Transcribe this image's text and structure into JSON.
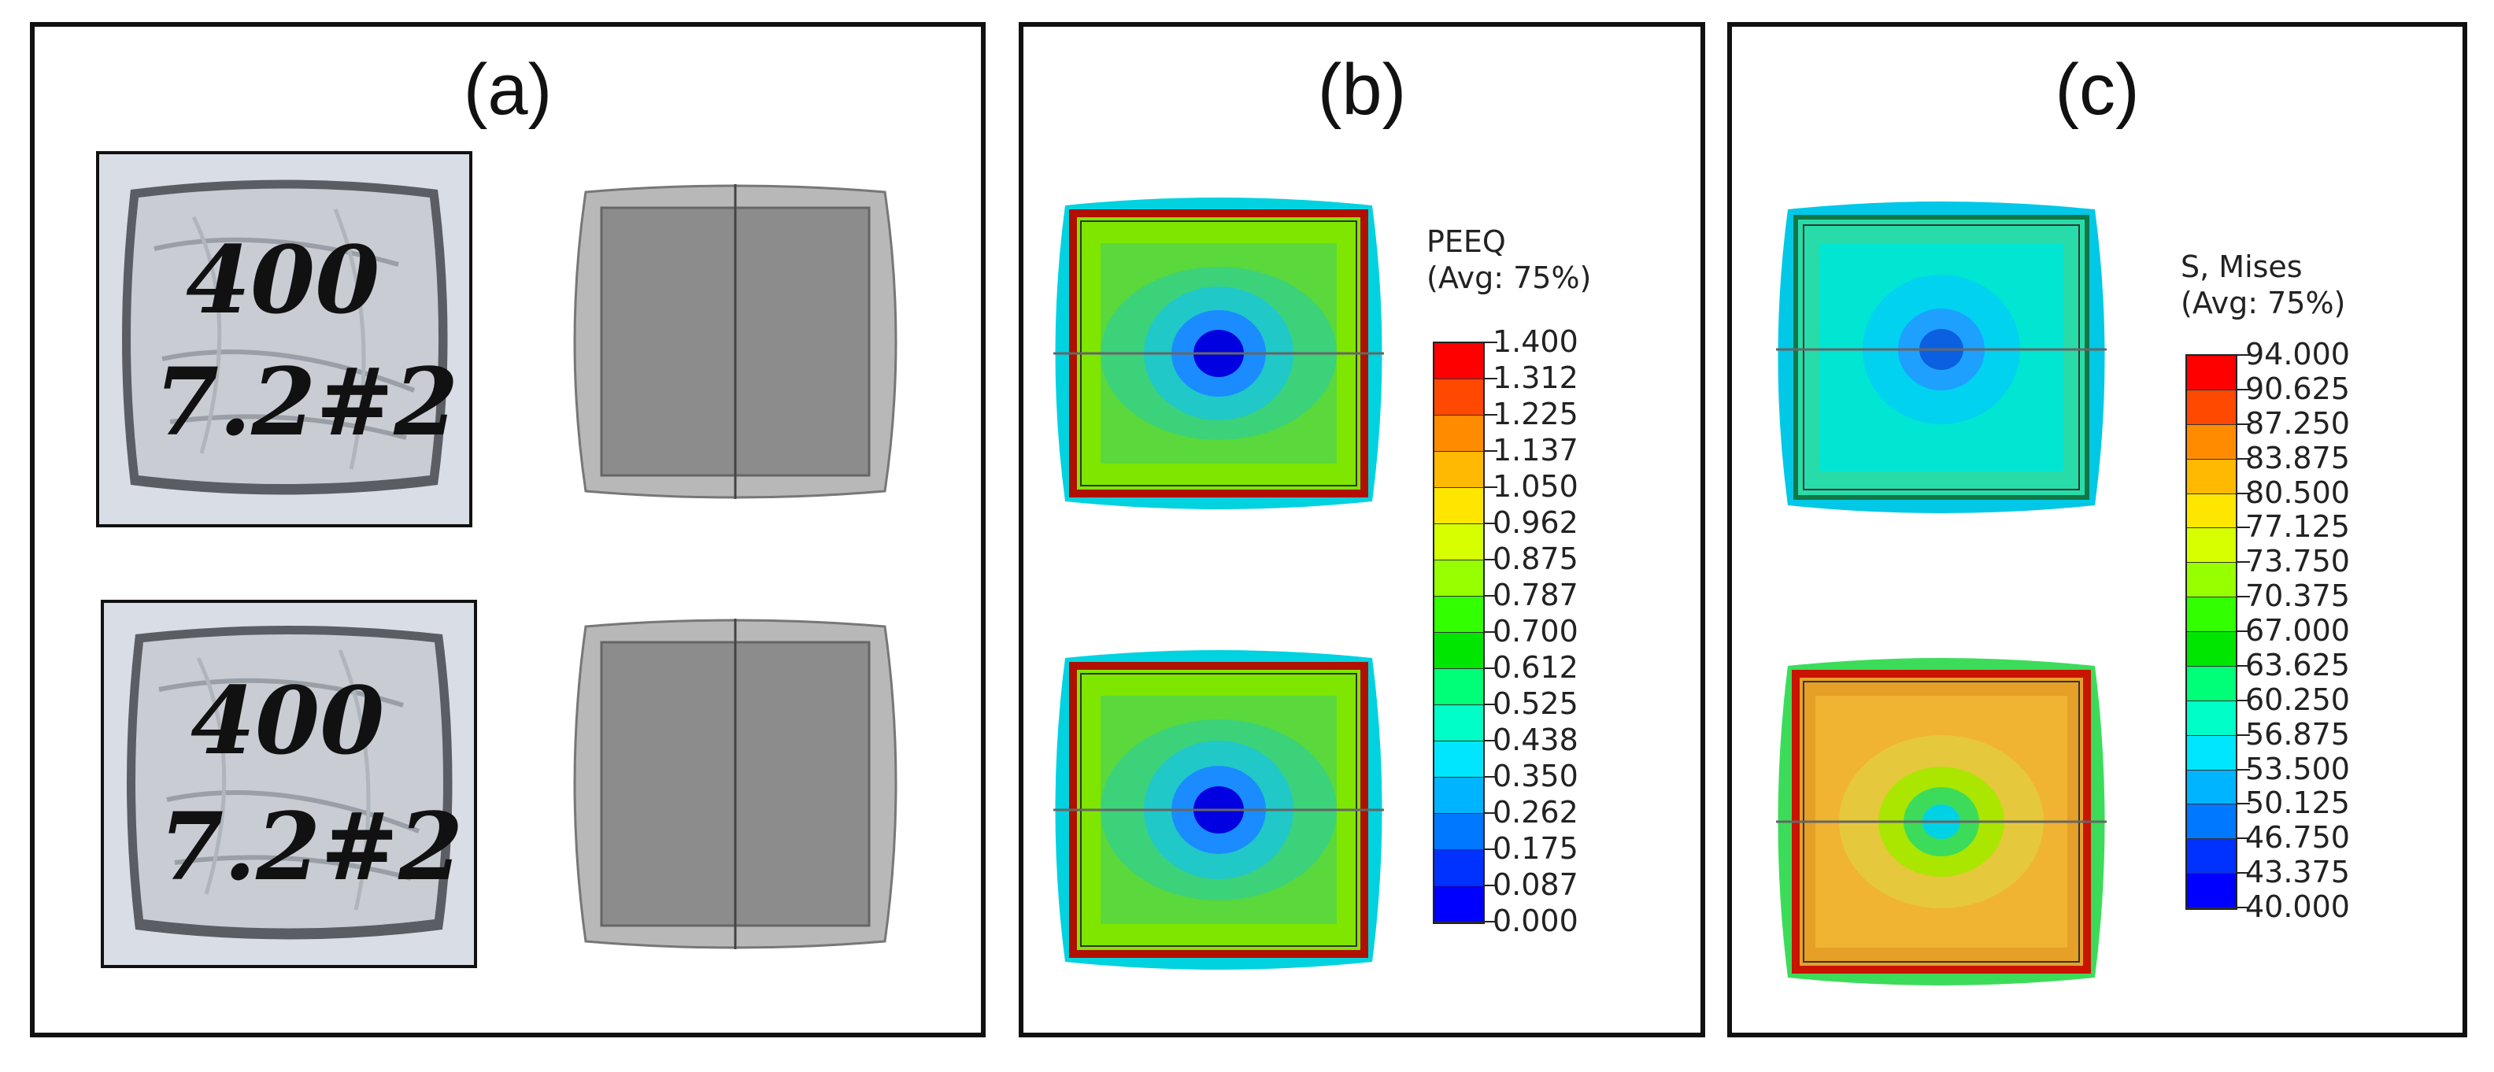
{
  "panels": {
    "a": {
      "label": "(a)",
      "photo_top": {
        "line1": "400",
        "line2": "7.2#2"
      },
      "photo_bottom": {
        "line1": "400",
        "line2": "7.2#2"
      }
    },
    "b": {
      "label": "(b)",
      "legend": {
        "title_line1": "PEEQ",
        "title_line2": "(Avg: 75%)",
        "ticks": [
          "1.400",
          "1.312",
          "1.225",
          "1.137",
          "1.050",
          "0.962",
          "0.875",
          "0.787",
          "0.700",
          "0.612",
          "0.525",
          "0.438",
          "0.350",
          "0.262",
          "0.175",
          "0.087",
          "0.000"
        ]
      }
    },
    "c": {
      "label": "(c)",
      "legend": {
        "title_line1": "S, Mises",
        "title_line2": "(Avg: 75%)",
        "ticks": [
          "94.000",
          "90.625",
          "87.250",
          "83.875",
          "80.500",
          "77.125",
          "73.750",
          "70.375",
          "67.000",
          "63.625",
          "60.250",
          "56.875",
          "53.500",
          "50.125",
          "46.750",
          "43.375",
          "40.000"
        ]
      }
    }
  },
  "colors": {
    "legend_scale": [
      "#ff0000",
      "#ff4800",
      "#ff8c00",
      "#ffb900",
      "#ffe600",
      "#d7ff00",
      "#96ff00",
      "#32ff00",
      "#00e600",
      "#00ff78",
      "#00ffc8",
      "#00e6ff",
      "#00b4ff",
      "#0078ff",
      "#0032ff",
      "#0000ff"
    ],
    "model_gray": "#8a8a8a",
    "photo_metal": "#c9ccd3"
  }
}
